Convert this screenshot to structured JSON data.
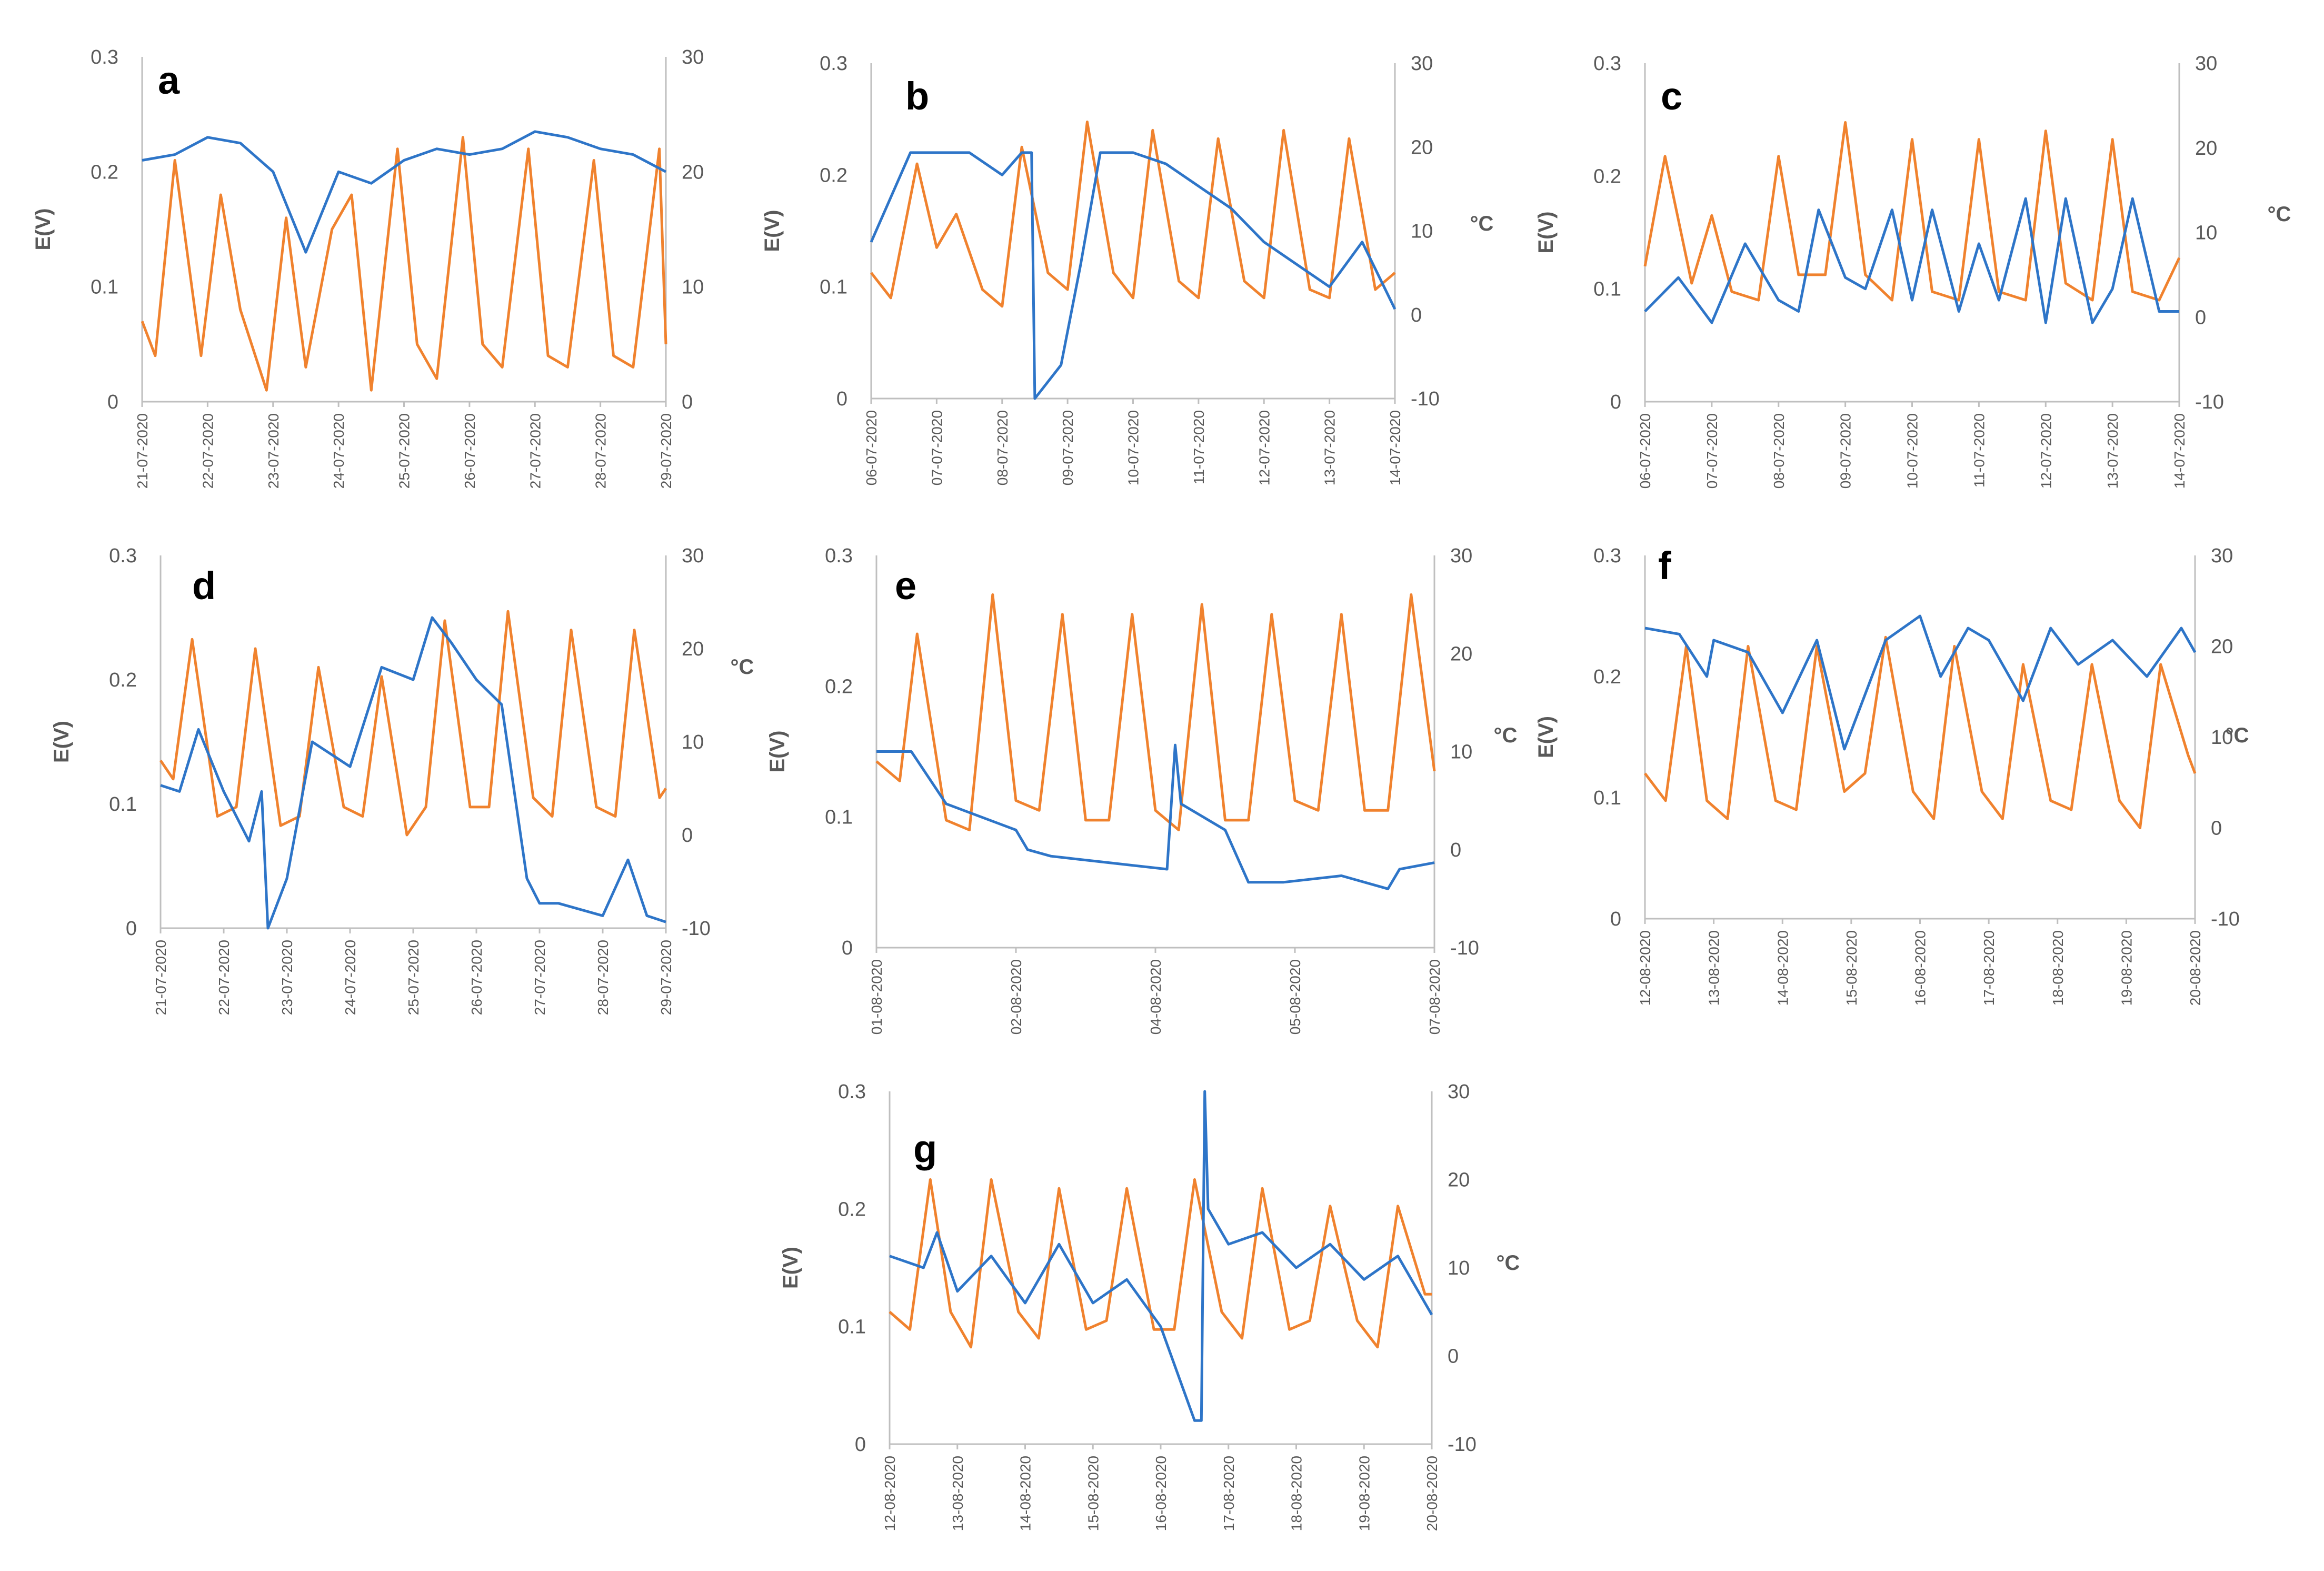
{
  "figure": {
    "colors": {
      "voltage": "#2e75c8",
      "temperature": "#f0822e",
      "axis": "#bfbfbf",
      "text": "#595959"
    }
  },
  "chart_data": [
    {
      "type": "line",
      "panel": "a",
      "left_axis_label": "E(V)",
      "right_axis_label": "",
      "left_ticks": [
        "0",
        "0.1",
        "0.2",
        "0.3"
      ],
      "ylim_left": [
        0,
        0.3
      ],
      "right_ticks": [
        "0",
        "10",
        "20",
        "30"
      ],
      "ylim_right": [
        0,
        30
      ],
      "x_ticks": [
        "21-07-2020",
        "22-07-2020",
        "23-07-2020",
        "24-07-2020",
        "25-07-2020",
        "26-07-2020",
        "27-07-2020",
        "28-07-2020",
        "29-07-2020"
      ],
      "series": [
        {
          "name": "E(V)",
          "axis": "left",
          "x": [
            0,
            0.5,
            1,
            1.5,
            2,
            2.5,
            3,
            3.5,
            4,
            4.5,
            5,
            5.5,
            6,
            6.5,
            7,
            7.5,
            8
          ],
          "values": [
            0.21,
            0.215,
            0.23,
            0.225,
            0.2,
            0.13,
            0.2,
            0.19,
            0.21,
            0.22,
            0.215,
            0.22,
            0.235,
            0.23,
            0.22,
            0.215,
            0.2
          ]
        },
        {
          "name": "°C",
          "axis": "right",
          "x": [
            0,
            0.2,
            0.5,
            0.9,
            1.2,
            1.5,
            1.9,
            2.2,
            2.5,
            2.9,
            3.2,
            3.5,
            3.9,
            4.2,
            4.5,
            4.9,
            5.2,
            5.5,
            5.9,
            6.2,
            6.5,
            6.9,
            7.2,
            7.5,
            7.9,
            8
          ],
          "values": [
            7,
            4,
            21,
            4,
            18,
            8,
            1,
            16,
            3,
            15,
            18,
            1,
            22,
            5,
            2,
            23,
            5,
            3,
            22,
            4,
            3,
            21,
            4,
            3,
            22,
            5
          ]
        }
      ]
    },
    {
      "type": "line",
      "panel": "b",
      "left_axis_label": "E(V)",
      "right_axis_label": "°C",
      "left_ticks": [
        "0",
        "0.1",
        "0.2",
        "0.3"
      ],
      "ylim_left": [
        0,
        0.3
      ],
      "right_ticks": [
        "-10",
        "0",
        "10",
        "20",
        "30"
      ],
      "ylim_right": [
        -10,
        30
      ],
      "x_ticks": [
        "06-07-2020",
        "07-07-2020",
        "08-07-2020",
        "09-07-2020",
        "10-07-2020",
        "11-07-2020",
        "12-07-2020",
        "13-07-2020",
        "14-07-2020"
      ],
      "series": [
        {
          "name": "E(V)",
          "axis": "left",
          "x": [
            0,
            0.3,
            0.6,
            1,
            1.5,
            2,
            2.3,
            2.45,
            2.5,
            2.9,
            3.2,
            3.5,
            4,
            4.5,
            5,
            5.5,
            6,
            6.5,
            7,
            7.5,
            8
          ],
          "values": [
            0.14,
            0.18,
            0.22,
            0.22,
            0.22,
            0.2,
            0.22,
            0.22,
            0,
            0.03,
            0.12,
            0.22,
            0.22,
            0.21,
            0.19,
            0.17,
            0.14,
            0.12,
            0.1,
            0.14,
            0.08
          ]
        },
        {
          "name": "°C",
          "axis": "right",
          "x": [
            0,
            0.3,
            0.7,
            1,
            1.3,
            1.7,
            2,
            2.3,
            2.7,
            3,
            3.3,
            3.7,
            4,
            4.3,
            4.7,
            5,
            5.3,
            5.7,
            6,
            6.3,
            6.7,
            7,
            7.3,
            7.7,
            8
          ],
          "values": [
            5,
            2,
            18,
            8,
            12,
            3,
            1,
            20,
            5,
            3,
            23,
            5,
            2,
            22,
            4,
            2,
            21,
            4,
            2,
            22,
            3,
            2,
            21,
            3,
            5
          ]
        }
      ]
    },
    {
      "type": "line",
      "panel": "c",
      "left_axis_label": "E(V)",
      "right_axis_label": "°C",
      "left_ticks": [
        "0",
        "0.1",
        "0.2",
        "0.3"
      ],
      "ylim_left": [
        0,
        0.3
      ],
      "right_ticks": [
        "-10",
        "0",
        "10",
        "20",
        "30"
      ],
      "ylim_right": [
        -10,
        30
      ],
      "x_ticks": [
        "06-07-2020",
        "07-07-2020",
        "08-07-2020",
        "09-07-2020",
        "10-07-2020",
        "11-07-2020",
        "12-07-2020",
        "13-07-2020",
        "14-07-2020"
      ],
      "series": [
        {
          "name": "E(V)",
          "axis": "left",
          "x": [
            0,
            0.5,
            1,
            1.5,
            2,
            2.3,
            2.6,
            3,
            3.3,
            3.7,
            4,
            4.3,
            4.7,
            5,
            5.3,
            5.7,
            6,
            6.3,
            6.7,
            7,
            7.3,
            7.7,
            8
          ],
          "values": [
            0.08,
            0.11,
            0.07,
            0.14,
            0.09,
            0.08,
            0.17,
            0.11,
            0.1,
            0.17,
            0.09,
            0.17,
            0.08,
            0.14,
            0.09,
            0.18,
            0.07,
            0.18,
            0.07,
            0.1,
            0.18,
            0.08,
            0.08
          ]
        },
        {
          "name": "°C",
          "axis": "right",
          "x": [
            0,
            0.3,
            0.7,
            1,
            1.3,
            1.7,
            2,
            2.3,
            2.7,
            3,
            3.3,
            3.7,
            4,
            4.3,
            4.7,
            5,
            5.3,
            5.7,
            6,
            6.3,
            6.7,
            7,
            7.3,
            7.7,
            8
          ],
          "values": [
            6,
            19,
            4,
            12,
            3,
            2,
            19,
            5,
            5,
            23,
            5,
            2,
            21,
            3,
            2,
            21,
            3,
            2,
            22,
            4,
            2,
            21,
            3,
            2,
            7
          ]
        }
      ]
    },
    {
      "type": "line",
      "panel": "d",
      "left_axis_label": "E(V)",
      "right_axis_label": "°C",
      "left_ticks": [
        "0",
        "0.1",
        "0.2",
        "0.3"
      ],
      "ylim_left": [
        0,
        0.3
      ],
      "right_ticks": [
        "-10",
        "0",
        "10",
        "20",
        "30"
      ],
      "ylim_right": [
        -10,
        30
      ],
      "x_ticks": [
        "21-07-2020",
        "22-07-2020",
        "23-07-2020",
        "24-07-2020",
        "25-07-2020",
        "26-07-2020",
        "27-07-2020",
        "28-07-2020",
        "29-07-2020"
      ],
      "series": [
        {
          "name": "E(V)",
          "axis": "left",
          "x": [
            0,
            0.3,
            0.6,
            1,
            1.4,
            1.6,
            1.7,
            2,
            2.4,
            3,
            3.5,
            4,
            4.3,
            4.6,
            5,
            5.4,
            5.8,
            6,
            6.3,
            7,
            7.4,
            7.7,
            8
          ],
          "values": [
            0.115,
            0.11,
            0.16,
            0.11,
            0.07,
            0.11,
            0,
            0.04,
            0.15,
            0.13,
            0.21,
            0.2,
            0.25,
            0.23,
            0.2,
            0.18,
            0.04,
            0.02,
            0.02,
            0.01,
            0.055,
            0.01,
            0.005
          ]
        },
        {
          "name": "°C",
          "axis": "right",
          "x": [
            0,
            0.2,
            0.5,
            0.9,
            1.2,
            1.5,
            1.9,
            2.2,
            2.5,
            2.9,
            3.2,
            3.5,
            3.9,
            4.2,
            4.5,
            4.9,
            5.2,
            5.5,
            5.9,
            6.2,
            6.5,
            6.9,
            7.2,
            7.5,
            7.9,
            8
          ],
          "values": [
            8,
            6,
            21,
            2,
            3,
            20,
            1,
            2,
            18,
            3,
            2,
            17,
            0,
            3,
            23,
            3,
            3,
            24,
            4,
            2,
            22,
            3,
            2,
            22,
            4,
            5
          ]
        }
      ]
    },
    {
      "type": "line",
      "panel": "e",
      "left_axis_label": "E(V)",
      "right_axis_label": "°C",
      "left_ticks": [
        "0",
        "0.1",
        "0.2",
        "0.3"
      ],
      "ylim_left": [
        0,
        0.3
      ],
      "right_ticks": [
        "-10",
        "0",
        "10",
        "20",
        "30"
      ],
      "ylim_right": [
        -10,
        30
      ],
      "x_ticks": [
        "01-08-2020",
        "02-08-2020",
        "04-08-2020",
        "05-08-2020",
        "07-08-2020"
      ],
      "series": [
        {
          "name": "E(V)",
          "axis": "left",
          "x": [
            0,
            0.3,
            0.6,
            0.9,
            1.2,
            1.3,
            1.5,
            2,
            2.5,
            2.57,
            2.62,
            3,
            3.2,
            3.5,
            4,
            4.4,
            4.5,
            4.8
          ],
          "values": [
            0.15,
            0.15,
            0.11,
            0.1,
            0.09,
            0.075,
            0.07,
            0.065,
            0.06,
            0.155,
            0.11,
            0.09,
            0.05,
            0.05,
            0.055,
            0.045,
            0.06,
            0.065
          ]
        },
        {
          "name": "°C",
          "axis": "right",
          "x": [
            0,
            0.2,
            0.35,
            0.6,
            0.8,
            1,
            1.2,
            1.4,
            1.6,
            1.8,
            2,
            2.2,
            2.4,
            2.6,
            2.8,
            3,
            3.2,
            3.4,
            3.6,
            3.8,
            4,
            4.2,
            4.4,
            4.6,
            4.8
          ],
          "values": [
            9,
            7,
            22,
            3,
            2,
            26,
            5,
            4,
            24,
            3,
            3,
            24,
            4,
            2,
            25,
            3,
            3,
            24,
            5,
            4,
            24,
            4,
            4,
            26,
            8
          ]
        }
      ]
    },
    {
      "type": "line",
      "panel": "f",
      "left_axis_label": "E(V)",
      "right_axis_label": "°C",
      "left_ticks": [
        "0",
        "0.1",
        "0.2",
        "0.3"
      ],
      "ylim_left": [
        0,
        0.3
      ],
      "right_ticks": [
        "-10",
        "0",
        "10",
        "20",
        "30"
      ],
      "ylim_right": [
        -10,
        30
      ],
      "x_ticks": [
        "12-08-2020",
        "13-08-2020",
        "14-08-2020",
        "15-08-2020",
        "16-08-2020",
        "17-08-2020",
        "18-08-2020",
        "19-08-2020",
        "20-08-2020"
      ],
      "series": [
        {
          "name": "E(V)",
          "axis": "left",
          "x": [
            0,
            0.5,
            0.9,
            1,
            1.5,
            2,
            2.5,
            2.9,
            3.5,
            4,
            4.3,
            4.7,
            5,
            5.5,
            5.9,
            6.3,
            6.8,
            7.3,
            7.8,
            8
          ],
          "values": [
            0.24,
            0.235,
            0.2,
            0.23,
            0.22,
            0.17,
            0.23,
            0.14,
            0.23,
            0.25,
            0.2,
            0.24,
            0.23,
            0.18,
            0.24,
            0.21,
            0.23,
            0.2,
            0.24,
            0.22
          ]
        },
        {
          "name": "°C",
          "axis": "right",
          "x": [
            0,
            0.3,
            0.6,
            0.9,
            1.2,
            1.5,
            1.9,
            2.2,
            2.5,
            2.9,
            3.2,
            3.5,
            3.9,
            4.2,
            4.5,
            4.9,
            5.2,
            5.5,
            5.9,
            6.2,
            6.5,
            6.9,
            7.2,
            7.5,
            7.9,
            8
          ],
          "values": [
            6,
            3,
            20,
            3,
            1,
            20,
            3,
            2,
            20,
            4,
            6,
            21,
            4,
            1,
            20,
            4,
            1,
            18,
            3,
            2,
            18,
            3,
            0,
            18,
            8,
            6
          ]
        }
      ]
    },
    {
      "type": "line",
      "panel": "g",
      "left_axis_label": "E(V)",
      "right_axis_label": "°C",
      "left_ticks": [
        "0",
        "0.1",
        "0.2",
        "0.3"
      ],
      "ylim_left": [
        0,
        0.3
      ],
      "right_ticks": [
        "-10",
        "0",
        "10",
        "20",
        "30"
      ],
      "ylim_right": [
        -10,
        30
      ],
      "x_ticks": [
        "12-08-2020",
        "13-08-2020",
        "14-08-2020",
        "15-08-2020",
        "16-08-2020",
        "17-08-2020",
        "18-08-2020",
        "19-08-2020",
        "20-08-2020"
      ],
      "series": [
        {
          "name": "E(V)",
          "axis": "left",
          "x": [
            0,
            0.5,
            0.7,
            1,
            1.5,
            2,
            2.5,
            3,
            3.5,
            4,
            4.5,
            4.6,
            4.65,
            4.7,
            5,
            5.5,
            6,
            6.5,
            7,
            7.5,
            8
          ],
          "values": [
            0.16,
            0.15,
            0.18,
            0.13,
            0.16,
            0.12,
            0.17,
            0.12,
            0.14,
            0.1,
            0.02,
            0.02,
            0.3,
            0.2,
            0.17,
            0.18,
            0.15,
            0.17,
            0.14,
            0.16,
            0.11
          ]
        },
        {
          "name": "°C",
          "axis": "right",
          "x": [
            0,
            0.3,
            0.6,
            0.9,
            1.2,
            1.5,
            1.9,
            2.2,
            2.5,
            2.9,
            3.2,
            3.5,
            3.9,
            4.2,
            4.5,
            4.9,
            5.2,
            5.5,
            5.9,
            6.2,
            6.5,
            6.9,
            7.2,
            7.5,
            7.9,
            8
          ],
          "values": [
            5,
            3,
            20,
            5,
            1,
            20,
            5,
            2,
            19,
            3,
            4,
            19,
            3,
            3,
            20,
            5,
            2,
            19,
            3,
            4,
            17,
            4,
            1,
            17,
            7,
            7
          ]
        }
      ]
    }
  ]
}
